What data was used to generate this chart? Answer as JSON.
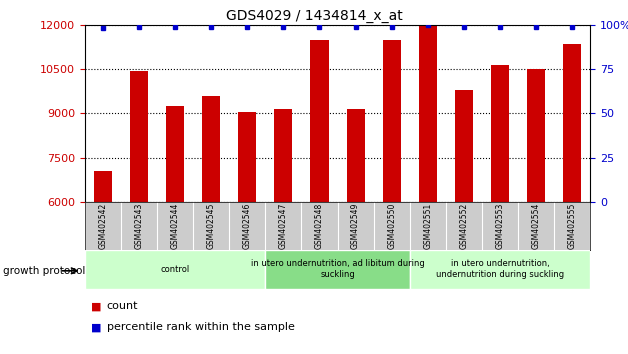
{
  "title": "GDS4029 / 1434814_x_at",
  "samples": [
    "GSM402542",
    "GSM402543",
    "GSM402544",
    "GSM402545",
    "GSM402546",
    "GSM402547",
    "GSM402548",
    "GSM402549",
    "GSM402550",
    "GSM402551",
    "GSM402552",
    "GSM402553",
    "GSM402554",
    "GSM402555"
  ],
  "counts": [
    7050,
    10450,
    9250,
    9600,
    9050,
    9150,
    11500,
    9150,
    11500,
    12000,
    9800,
    10650,
    10500,
    11350
  ],
  "percentiles": [
    98,
    99,
    99,
    99,
    99,
    99,
    99,
    99,
    99,
    100,
    99,
    99,
    99,
    99
  ],
  "ylim_left": [
    6000,
    12000
  ],
  "ylim_right": [
    0,
    100
  ],
  "yticks_left": [
    6000,
    7500,
    9000,
    10500,
    12000
  ],
  "yticks_right": [
    0,
    25,
    50,
    75,
    100
  ],
  "yticklabels_right": [
    "0",
    "25",
    "50",
    "75",
    "100%"
  ],
  "bar_color": "#cc0000",
  "dot_color": "#0000cc",
  "groups": [
    {
      "label": "control",
      "start": 0,
      "end": 5,
      "color": "#ccffcc"
    },
    {
      "label": "in utero undernutrition, ad libitum during\nsuckling",
      "start": 5,
      "end": 9,
      "color": "#88dd88"
    },
    {
      "label": "in utero undernutrition,\nundernutrition during suckling",
      "start": 9,
      "end": 14,
      "color": "#ccffcc"
    }
  ],
  "legend_count_label": "count",
  "legend_pct_label": "percentile rank within the sample",
  "growth_protocol_label": "growth protocol",
  "right_axis_color": "#0000cc",
  "left_axis_color": "#cc0000",
  "bg_color": "#ffffff",
  "xlabel_bg": "#cccccc",
  "bar_width": 0.5
}
